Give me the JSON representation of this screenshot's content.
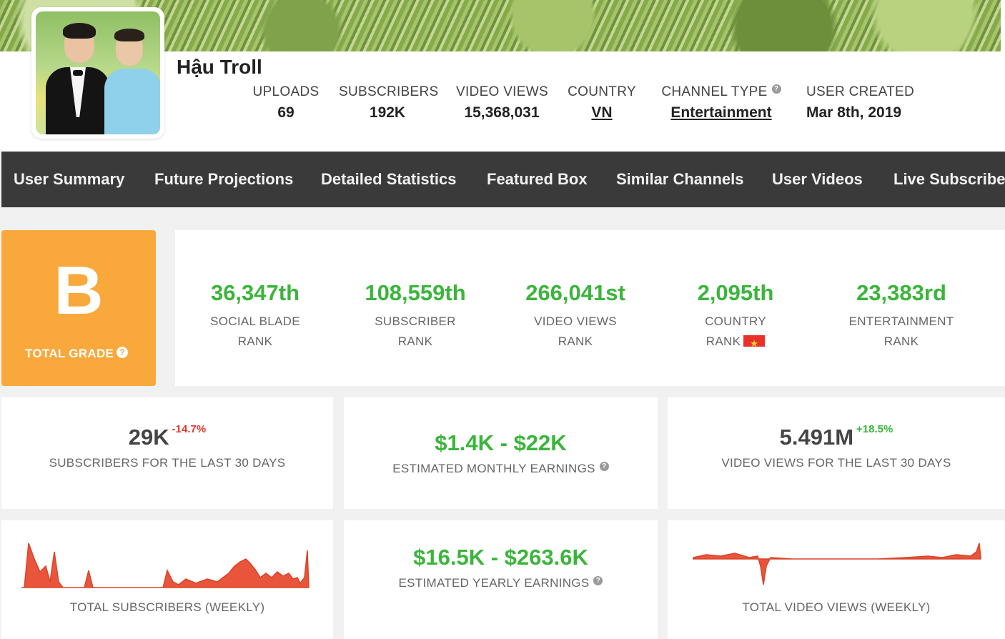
{
  "channel": {
    "name": "Hậu Troll"
  },
  "header_stats": [
    {
      "label": "UPLOADS",
      "value": "69"
    },
    {
      "label": "SUBSCRIBERS",
      "value": "192K"
    },
    {
      "label": "VIDEO VIEWS",
      "value": "15,368,031"
    },
    {
      "label": "COUNTRY",
      "value": "VN"
    },
    {
      "label": "CHANNEL TYPE",
      "value": "Entertainment"
    },
    {
      "label": "USER CREATED",
      "value": "Mar 8th, 2019"
    }
  ],
  "nav": {
    "items": [
      "User Summary",
      "Future Projections",
      "Detailed Statistics",
      "Featured Box",
      "Similar Channels",
      "User Videos",
      "Live Subscriber"
    ]
  },
  "grade": {
    "letter": "B",
    "label": "TOTAL GRADE"
  },
  "ranks": [
    {
      "value": "36,347th",
      "label1": "SOCIAL BLADE",
      "label2": "RANK"
    },
    {
      "value": "108,559th",
      "label1": "SUBSCRIBER",
      "label2": "RANK"
    },
    {
      "value": "266,041st",
      "label1": "VIDEO VIEWS",
      "label2": "RANK"
    },
    {
      "value": "2,095th",
      "label1": "COUNTRY",
      "label2": "RANK"
    },
    {
      "value": "23,383rd",
      "label1": "ENTERTAINMENT",
      "label2": "RANK"
    }
  ],
  "cards": {
    "subs30": {
      "value": "29K",
      "change": "-14.7%",
      "label": "SUBSCRIBERS FOR THE LAST 30 DAYS"
    },
    "monthly": {
      "value": "$1.4K - $22K",
      "label": "ESTIMATED MONTHLY EARNINGS"
    },
    "views30": {
      "value": "5.491M",
      "change": "+18.5%",
      "label": "VIDEO VIEWS FOR THE LAST 30 DAYS"
    },
    "yearly": {
      "value": "$16.5K - $263.6K",
      "label": "ESTIMATED YEARLY EARNINGS"
    },
    "subs_weekly": {
      "label": "TOTAL SUBSCRIBERS (WEEKLY)"
    },
    "views_weekly": {
      "label": "TOTAL VIDEO VIEWS (WEEKLY)"
    }
  },
  "colors": {
    "accent_green": "#3bb53b",
    "grade_orange": "#f9a83b",
    "down_red": "#e0362b",
    "nav_bg": "#3a3a3a",
    "chart_red": "#e8553a"
  }
}
